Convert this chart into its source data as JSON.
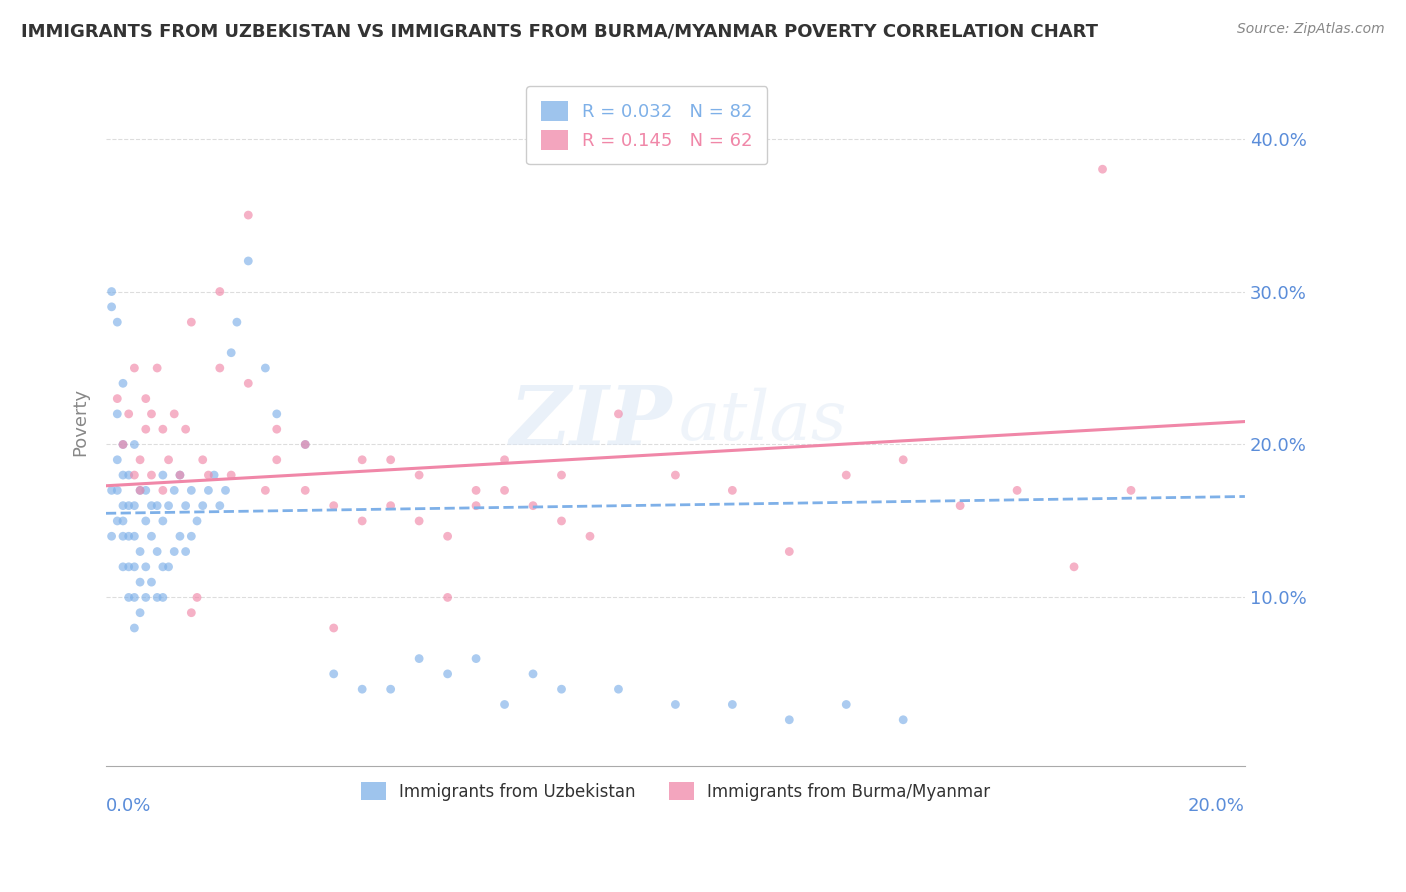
{
  "title": "IMMIGRANTS FROM UZBEKISTAN VS IMMIGRANTS FROM BURMA/MYANMAR POVERTY CORRELATION CHART",
  "source": "Source: ZipAtlas.com",
  "ylabel": "Poverty",
  "y_tick_labels": [
    "10.0%",
    "20.0%",
    "30.0%",
    "40.0%"
  ],
  "y_tick_values": [
    0.1,
    0.2,
    0.3,
    0.4
  ],
  "x_lim": [
    0.0,
    0.2
  ],
  "y_lim": [
    -0.01,
    0.44
  ],
  "series1_color": "#7eb0e8",
  "series2_color": "#f087a8",
  "series1_label": "Immigrants from Uzbekistan",
  "series2_label": "Immigrants from Burma/Myanmar",
  "series1_R": "0.032",
  "series1_N": "82",
  "series2_R": "0.145",
  "series2_N": "62",
  "axis_color": "#5b8dd9",
  "trend1_x0": 0.0,
  "trend1_x1": 0.2,
  "trend1_y0": 0.155,
  "trend1_y1": 0.166,
  "trend2_x0": 0.0,
  "trend2_x1": 0.2,
  "trend2_y0": 0.173,
  "trend2_y1": 0.215,
  "uzbek_x": [
    0.001,
    0.001,
    0.001,
    0.001,
    0.002,
    0.002,
    0.002,
    0.002,
    0.002,
    0.003,
    0.003,
    0.003,
    0.003,
    0.003,
    0.003,
    0.003,
    0.004,
    0.004,
    0.004,
    0.004,
    0.004,
    0.005,
    0.005,
    0.005,
    0.005,
    0.005,
    0.005,
    0.006,
    0.006,
    0.006,
    0.006,
    0.007,
    0.007,
    0.007,
    0.007,
    0.008,
    0.008,
    0.008,
    0.009,
    0.009,
    0.009,
    0.01,
    0.01,
    0.01,
    0.01,
    0.011,
    0.011,
    0.012,
    0.012,
    0.013,
    0.013,
    0.014,
    0.014,
    0.015,
    0.015,
    0.016,
    0.017,
    0.018,
    0.019,
    0.02,
    0.021,
    0.022,
    0.023,
    0.025,
    0.028,
    0.03,
    0.035,
    0.04,
    0.045,
    0.05,
    0.055,
    0.06,
    0.065,
    0.07,
    0.075,
    0.08,
    0.09,
    0.1,
    0.11,
    0.12,
    0.13,
    0.14
  ],
  "uzbek_y": [
    0.14,
    0.17,
    0.29,
    0.3,
    0.15,
    0.17,
    0.19,
    0.22,
    0.28,
    0.12,
    0.14,
    0.15,
    0.16,
    0.18,
    0.2,
    0.24,
    0.1,
    0.12,
    0.14,
    0.16,
    0.18,
    0.08,
    0.1,
    0.12,
    0.14,
    0.16,
    0.2,
    0.09,
    0.11,
    0.13,
    0.17,
    0.1,
    0.12,
    0.15,
    0.17,
    0.11,
    0.14,
    0.16,
    0.1,
    0.13,
    0.16,
    0.1,
    0.12,
    0.15,
    0.18,
    0.12,
    0.16,
    0.13,
    0.17,
    0.14,
    0.18,
    0.13,
    0.16,
    0.14,
    0.17,
    0.15,
    0.16,
    0.17,
    0.18,
    0.16,
    0.17,
    0.26,
    0.28,
    0.32,
    0.25,
    0.22,
    0.2,
    0.05,
    0.04,
    0.04,
    0.06,
    0.05,
    0.06,
    0.03,
    0.05,
    0.04,
    0.04,
    0.03,
    0.03,
    0.02,
    0.03,
    0.02
  ],
  "burma_x": [
    0.002,
    0.003,
    0.004,
    0.005,
    0.005,
    0.006,
    0.006,
    0.007,
    0.007,
    0.008,
    0.008,
    0.009,
    0.01,
    0.01,
    0.011,
    0.012,
    0.013,
    0.014,
    0.015,
    0.016,
    0.017,
    0.018,
    0.02,
    0.022,
    0.025,
    0.028,
    0.03,
    0.035,
    0.04,
    0.045,
    0.05,
    0.055,
    0.06,
    0.065,
    0.07,
    0.08,
    0.09,
    0.1,
    0.11,
    0.12,
    0.13,
    0.14,
    0.15,
    0.16,
    0.17,
    0.175,
    0.18,
    0.015,
    0.02,
    0.025,
    0.03,
    0.035,
    0.04,
    0.045,
    0.05,
    0.055,
    0.06,
    0.065,
    0.07,
    0.075,
    0.08,
    0.085
  ],
  "burma_y": [
    0.23,
    0.2,
    0.22,
    0.25,
    0.18,
    0.19,
    0.17,
    0.21,
    0.23,
    0.18,
    0.22,
    0.25,
    0.17,
    0.21,
    0.19,
    0.22,
    0.18,
    0.21,
    0.09,
    0.1,
    0.19,
    0.18,
    0.3,
    0.18,
    0.35,
    0.17,
    0.19,
    0.2,
    0.08,
    0.19,
    0.19,
    0.18,
    0.1,
    0.17,
    0.19,
    0.18,
    0.22,
    0.18,
    0.17,
    0.13,
    0.18,
    0.19,
    0.16,
    0.17,
    0.12,
    0.38,
    0.17,
    0.28,
    0.25,
    0.24,
    0.21,
    0.17,
    0.16,
    0.15,
    0.16,
    0.15,
    0.14,
    0.16,
    0.17,
    0.16,
    0.15,
    0.14
  ]
}
